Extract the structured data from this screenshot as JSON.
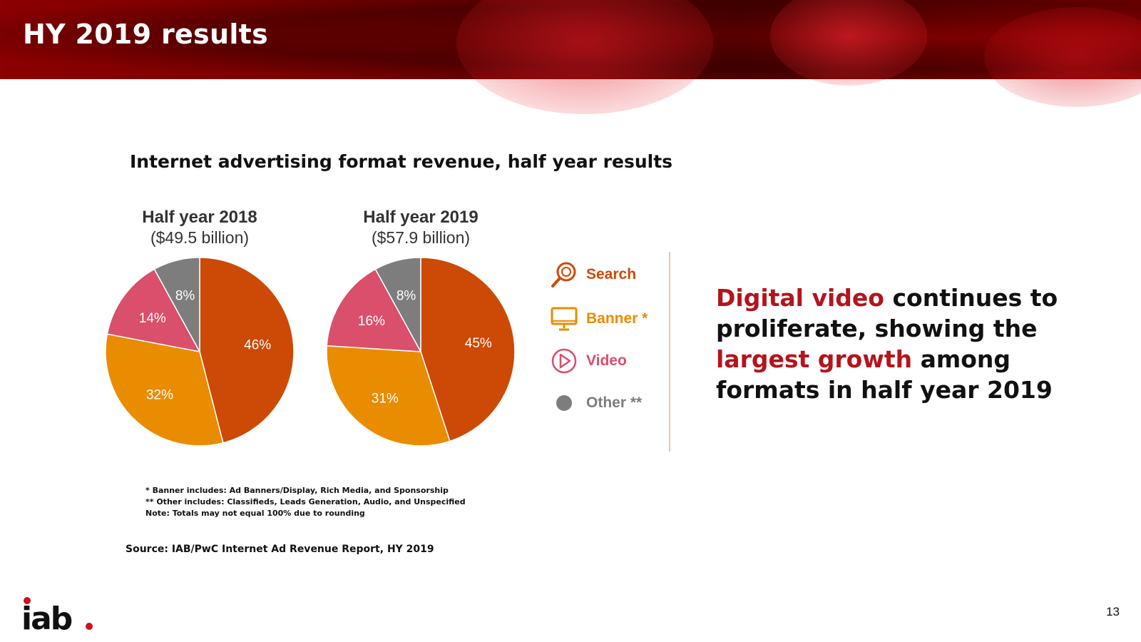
{
  "header": {
    "title": "HY 2019 results"
  },
  "chart_data": {
    "type": "pie",
    "title": "Internet advertising format revenue, half year results",
    "legend": [
      {
        "name": "Search",
        "label": "Search",
        "color": "#cc4a05",
        "icon": "magnifier-icon"
      },
      {
        "name": "Banner",
        "label": "Banner *",
        "color": "#ea8c00",
        "icon": "monitor-icon"
      },
      {
        "name": "Video",
        "label": "Video",
        "color": "#da4f6b",
        "icon": "play-icon"
      },
      {
        "name": "Other",
        "label": "Other **",
        "color": "#7d7d7d",
        "icon": "dot-icon"
      }
    ],
    "pies": [
      {
        "title": "Half year 2018",
        "subtitle": "($49.5 billion)",
        "slices": [
          {
            "category": "Search",
            "value": 46,
            "label": "46%"
          },
          {
            "category": "Banner",
            "value": 32,
            "label": "32%"
          },
          {
            "category": "Video",
            "value": 14,
            "label": "14%"
          },
          {
            "category": "Other",
            "value": 8,
            "label": "8%"
          }
        ]
      },
      {
        "title": "Half year 2019",
        "subtitle": "($57.9 billion)",
        "slices": [
          {
            "category": "Search",
            "value": 45,
            "label": "45%"
          },
          {
            "category": "Banner",
            "value": 31,
            "label": "31%"
          },
          {
            "category": "Video",
            "value": 16,
            "label": "16%"
          },
          {
            "category": "Other",
            "value": 8,
            "label": "8%"
          }
        ]
      }
    ]
  },
  "headline": {
    "part1": "Digital video",
    "part2": " continues to proliferate, showing the ",
    "part3": "largest growth",
    "part4": " among formats in half year 2019"
  },
  "notes": [
    "* Banner includes: Ad Banners/Display, Rich Media, and Sponsorship",
    "** Other includes: Classifieds, Leads Generation, Audio, and Unspecified",
    "Note: Totals may not equal 100% due to rounding"
  ],
  "source": "Source: IAB/PwC Internet Ad Revenue Report, HY 2019",
  "logo": {
    "text": "iab",
    "dot_color": "#d0101a"
  },
  "page_number": "13"
}
